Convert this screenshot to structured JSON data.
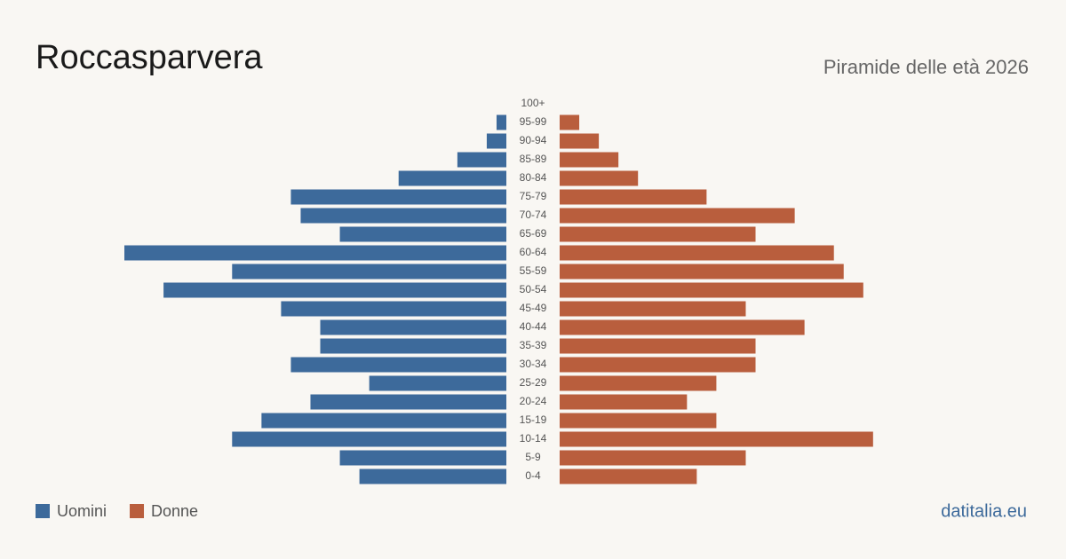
{
  "chart_data": {
    "type": "pyramid",
    "title": "Roccasparvera",
    "subtitle": "Piramide delle età 2026",
    "source": "datitalia.eu",
    "categories": [
      "100+",
      "95-99",
      "90-94",
      "85-89",
      "80-84",
      "75-79",
      "70-74",
      "65-69",
      "60-64",
      "55-59",
      "50-54",
      "45-49",
      "40-44",
      "35-39",
      "30-34",
      "25-29",
      "20-24",
      "15-19",
      "10-14",
      "5-9",
      "0-4"
    ],
    "series": [
      {
        "name": "Uomini",
        "color": "#3d6a9b",
        "values": [
          0,
          1,
          2,
          5,
          11,
          22,
          21,
          17,
          39,
          28,
          35,
          23,
          19,
          19,
          22,
          14,
          20,
          25,
          28,
          17,
          15
        ]
      },
      {
        "name": "Donne",
        "color": "#b95e3d",
        "values": [
          0,
          2,
          4,
          6,
          8,
          15,
          24,
          20,
          28,
          29,
          31,
          19,
          25,
          20,
          20,
          16,
          13,
          16,
          32,
          19,
          14
        ]
      }
    ]
  }
}
